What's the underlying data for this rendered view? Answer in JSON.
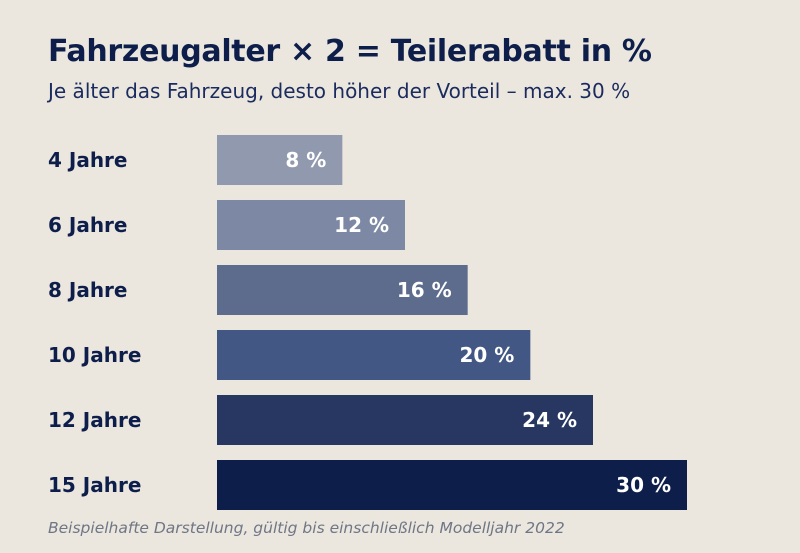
{
  "chart_data": {
    "type": "bar",
    "orientation": "horizontal",
    "title": "Fahrzeugalter × 2 = Teilerabatt in %",
    "subtitle": "Je älter das Fahrzeug, desto höher der Vorteil – max. 30 %",
    "categories": [
      "4 Jahre",
      "6 Jahre",
      "8 Jahre",
      "10 Jahre",
      "12 Jahre",
      "15 Jahre"
    ],
    "values": [
      8,
      12,
      16,
      20,
      24,
      30
    ],
    "value_labels": [
      "8 %",
      "12 %",
      "16 %",
      "20 %",
      "24 %",
      "30 %"
    ],
    "bar_colors": [
      "#9099ad",
      "#7d89a4",
      "#5d6c8c",
      "#435784",
      "#283762",
      "#0d1e4b"
    ],
    "xlim": [
      0,
      30
    ],
    "grid": false,
    "legend": "none",
    "footnote": "Beispielhafte Darstellung, gültig bis einschließlich Modelljahr 2022"
  },
  "colors": {
    "background": "#ebe6de",
    "text_dark": "#0d1e4b",
    "footnote": "#6f7685"
  }
}
